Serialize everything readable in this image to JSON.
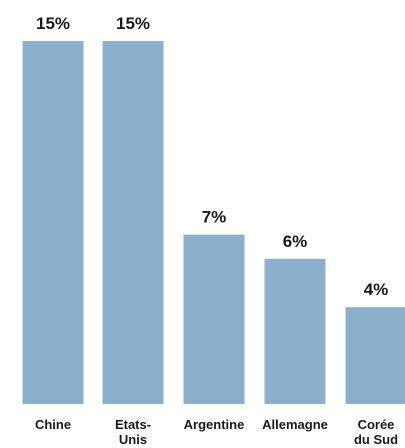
{
  "chart_data": {
    "type": "bar",
    "categories": [
      [
        "Chine"
      ],
      [
        "Etats-",
        "Unis"
      ],
      [
        "Argentine"
      ],
      [
        "Allemagne"
      ],
      [
        "Corée",
        "du Sud"
      ]
    ],
    "values": [
      15,
      15,
      7,
      6,
      4
    ],
    "value_labels": [
      "15%",
      "15%",
      "7%",
      "6%",
      "4%"
    ],
    "ylim": [
      0,
      15
    ],
    "bar_color": "#8ab0cb",
    "grid": false
  }
}
